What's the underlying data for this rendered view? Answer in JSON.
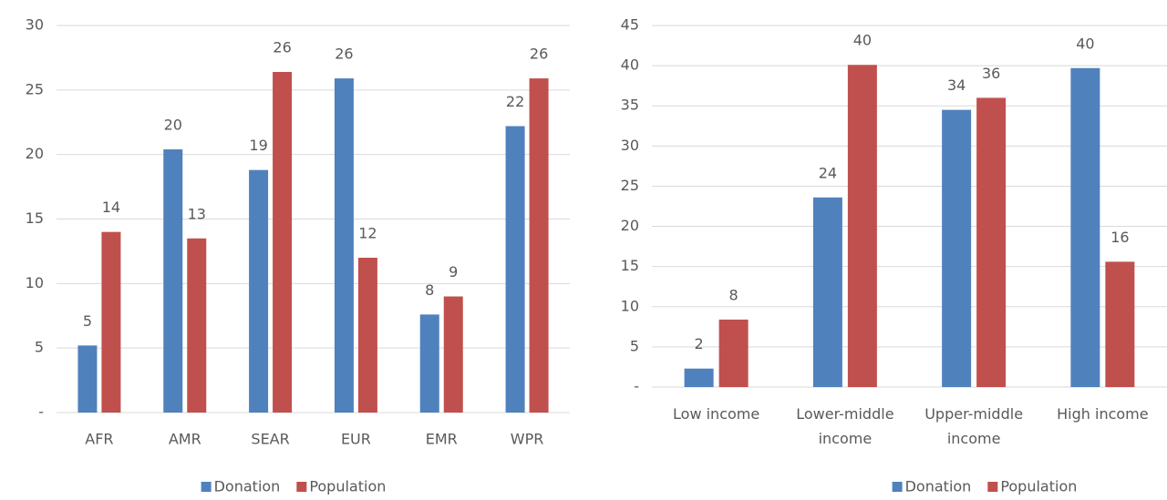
{
  "chart_data": [
    {
      "type": "bar",
      "categories": [
        "AFR",
        "AMR",
        "SEAR",
        "EUR",
        "EMR",
        "WPR"
      ],
      "series": [
        {
          "name": "Donation",
          "color": "#4f81bd",
          "values": [
            5.2,
            20.4,
            18.8,
            25.9,
            7.6,
            22.2
          ],
          "value_labels": [
            "5",
            "20",
            "19",
            "26",
            "8",
            "22"
          ]
        },
        {
          "name": "Population",
          "color": "#c0504d",
          "values": [
            14.0,
            13.5,
            26.4,
            12.0,
            9.0,
            25.9
          ],
          "value_labels": [
            "14",
            "13",
            "26",
            "12",
            "9",
            "26"
          ]
        }
      ],
      "ylim": [
        0,
        30
      ],
      "yticks": [
        {
          "value": 0,
          "label": "-"
        },
        5,
        10,
        15,
        20,
        25,
        30
      ],
      "grid": true,
      "legend": "bottom"
    },
    {
      "type": "bar",
      "categories": [
        "Low income",
        "Lower-middle income",
        "Upper-middle income",
        "High income"
      ],
      "series": [
        {
          "name": "Donation",
          "color": "#4f81bd",
          "values": [
            2.3,
            23.6,
            34.5,
            39.7
          ],
          "value_labels": [
            "2",
            "24",
            "34",
            "40"
          ]
        },
        {
          "name": "Population",
          "color": "#c0504d",
          "values": [
            8.4,
            40.1,
            36.0,
            15.6
          ],
          "value_labels": [
            "8",
            "40",
            "36",
            "16"
          ]
        }
      ],
      "ylim": [
        0,
        45
      ],
      "yticks": [
        {
          "value": 0,
          "label": "-"
        },
        5,
        10,
        15,
        20,
        25,
        30,
        35,
        40,
        45
      ],
      "grid": true,
      "legend": "bottom"
    }
  ]
}
